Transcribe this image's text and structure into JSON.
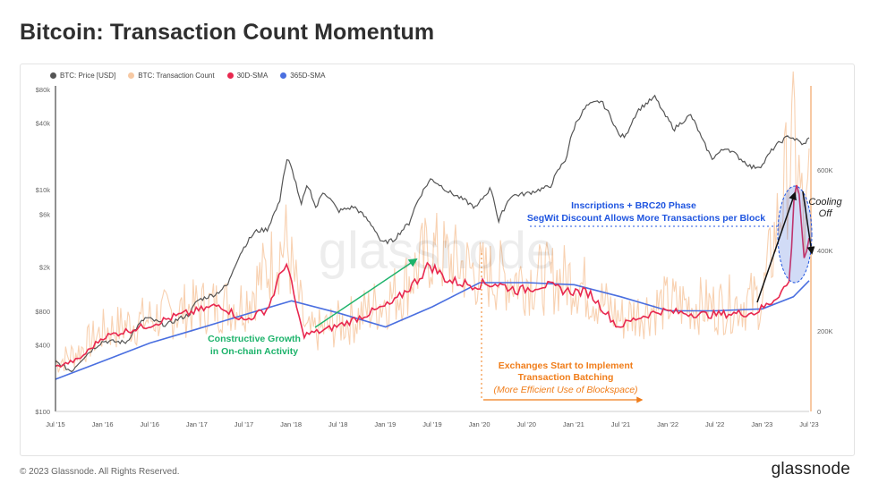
{
  "title": "Bitcoin: Transaction Count Momentum",
  "legend": [
    {
      "label": "BTC: Price [USD]",
      "color": "#555555"
    },
    {
      "label": "BTC: Transaction Count",
      "color": "#f7c9a3"
    },
    {
      "label": "30D-SMA",
      "color": "#e8284f"
    },
    {
      "label": "365D-SMA",
      "color": "#4a6fe0"
    }
  ],
  "watermark": "glassnode",
  "annotations": {
    "growth_line1": "Constructive Growth",
    "growth_line2": "in On-chain Activity",
    "batching_line1": "Exchanges Start to Implement",
    "batching_line2": "Transaction Batching",
    "batching_line3": "(More Efficient Use of Blockspace)",
    "inscriptions_line1": "Inscriptions + BRC20 Phase",
    "inscriptions_line2": "SegWit Discount Allows More Transactions per Block",
    "cooling_line1": "Cooling",
    "cooling_line2": "Off"
  },
  "colors": {
    "price": "#555555",
    "tx_count": "#f7c9a3",
    "sma30": "#e8284f",
    "sma365": "#4a6fe0",
    "green_annotation": "#1db36b",
    "orange_annotation": "#f07d1a",
    "blue_annotation": "#1f55e0"
  },
  "footer": {
    "copyright": "© 2023 Glassnode. All Rights Reserved.",
    "logo": "glassnode"
  },
  "chart_data": {
    "type": "line",
    "title": "Bitcoin: Transaction Count Momentum",
    "x_ticks": [
      "Jul '15",
      "Jan '16",
      "Jul '16",
      "Jan '17",
      "Jul '17",
      "Jan '18",
      "Jul '18",
      "Jan '19",
      "Jul '19",
      "Jan '20",
      "Jul '20",
      "Jan '21",
      "Jul '21",
      "Jan '22",
      "Jul '22",
      "Jan '23",
      "Jul '23"
    ],
    "x_range": [
      "2015-07-01",
      "2023-07-01"
    ],
    "y_left": {
      "scale": "log",
      "range": [
        100,
        80000
      ],
      "ticks": [
        "$100",
        "$400",
        "$800",
        "$2k",
        "$6k",
        "$10k",
        "$40k",
        "$80k"
      ],
      "tick_values": [
        100,
        400,
        800,
        2000,
        6000,
        10000,
        40000,
        80000
      ]
    },
    "y_right": {
      "scale": "linear",
      "range": [
        0,
        800000
      ],
      "ticks": [
        "0",
        "200K",
        "400K",
        "600K"
      ],
      "tick_values": [
        0,
        200000,
        400000,
        600000
      ]
    },
    "series": [
      {
        "name": "BTC: Price [USD]",
        "axis": "left",
        "points": [
          [
            "2015-07-01",
            280
          ],
          [
            "2015-09-01",
            230
          ],
          [
            "2015-11-01",
            330
          ],
          [
            "2016-01-01",
            430
          ],
          [
            "2016-04-01",
            420
          ],
          [
            "2016-06-15",
            700
          ],
          [
            "2016-09-01",
            600
          ],
          [
            "2016-12-01",
            750
          ],
          [
            "2017-01-01",
            1000
          ],
          [
            "2017-03-15",
            1150
          ],
          [
            "2017-05-01",
            1400
          ],
          [
            "2017-06-15",
            2600
          ],
          [
            "2017-08-15",
            4200
          ],
          [
            "2017-10-01",
            4400
          ],
          [
            "2017-11-15",
            7500
          ],
          [
            "2017-12-17",
            19000
          ],
          [
            "2018-02-06",
            7000
          ],
          [
            "2018-03-05",
            11000
          ],
          [
            "2018-04-06",
            6700
          ],
          [
            "2018-05-05",
            9700
          ],
          [
            "2018-07-01",
            6400
          ],
          [
            "2018-09-01",
            7000
          ],
          [
            "2018-11-20",
            4400
          ],
          [
            "2018-12-15",
            3300
          ],
          [
            "2019-02-01",
            3500
          ],
          [
            "2019-04-03",
            5000
          ],
          [
            "2019-06-26",
            12500
          ],
          [
            "2019-09-01",
            9600
          ],
          [
            "2019-12-18",
            6800
          ],
          [
            "2020-02-13",
            10300
          ],
          [
            "2020-03-13",
            5000
          ],
          [
            "2020-05-01",
            8800
          ],
          [
            "2020-07-01",
            9200
          ],
          [
            "2020-10-01",
            10700
          ],
          [
            "2020-12-01",
            19000
          ],
          [
            "2021-01-08",
            40000
          ],
          [
            "2021-02-20",
            57000
          ],
          [
            "2021-04-14",
            63000
          ],
          [
            "2021-06-22",
            31000
          ],
          [
            "2021-07-20",
            30000
          ],
          [
            "2021-09-06",
            52000
          ],
          [
            "2021-11-10",
            68000
          ],
          [
            "2021-12-15",
            48000
          ],
          [
            "2022-01-24",
            35000
          ],
          [
            "2022-03-28",
            47000
          ],
          [
            "2022-05-12",
            28000
          ],
          [
            "2022-06-18",
            19000
          ],
          [
            "2022-08-15",
            24000
          ],
          [
            "2022-10-01",
            19500
          ],
          [
            "2022-11-21",
            15800
          ],
          [
            "2023-01-01",
            16600
          ],
          [
            "2023-02-15",
            24000
          ],
          [
            "2023-04-14",
            30500
          ],
          [
            "2023-06-15",
            25000
          ],
          [
            "2023-07-01",
            30400
          ]
        ]
      },
      {
        "name": "30D-SMA",
        "axis": "right",
        "points": [
          [
            "2015-07-01",
            110000
          ],
          [
            "2015-10-01",
            130000
          ],
          [
            "2016-01-01",
            185000
          ],
          [
            "2016-04-01",
            200000
          ],
          [
            "2016-07-01",
            215000
          ],
          [
            "2016-10-01",
            235000
          ],
          [
            "2017-01-01",
            250000
          ],
          [
            "2017-04-01",
            265000
          ],
          [
            "2017-07-01",
            225000
          ],
          [
            "2017-10-01",
            255000
          ],
          [
            "2017-12-10",
            375000
          ],
          [
            "2018-02-15",
            190000
          ],
          [
            "2018-05-01",
            200000
          ],
          [
            "2018-08-01",
            220000
          ],
          [
            "2018-11-01",
            245000
          ],
          [
            "2019-02-01",
            270000
          ],
          [
            "2019-05-01",
            325000
          ],
          [
            "2019-06-20",
            365000
          ],
          [
            "2019-09-01",
            325000
          ],
          [
            "2019-12-01",
            315000
          ],
          [
            "2020-03-01",
            318000
          ],
          [
            "2020-06-01",
            300000
          ],
          [
            "2020-09-01",
            315000
          ],
          [
            "2020-12-01",
            300000
          ],
          [
            "2021-03-01",
            295000
          ],
          [
            "2021-06-20",
            210000
          ],
          [
            "2021-09-01",
            232000
          ],
          [
            "2021-12-01",
            250000
          ],
          [
            "2022-03-01",
            245000
          ],
          [
            "2022-06-01",
            240000
          ],
          [
            "2022-09-01",
            243000
          ],
          [
            "2022-12-01",
            245000
          ],
          [
            "2023-02-01",
            270000
          ],
          [
            "2023-04-15",
            320000
          ],
          [
            "2023-05-10",
            590000
          ],
          [
            "2023-05-25",
            540000
          ],
          [
            "2023-06-10",
            380000
          ],
          [
            "2023-07-01",
            420000
          ]
        ]
      },
      {
        "name": "365D-SMA",
        "axis": "right",
        "points": [
          [
            "2015-07-01",
            80000
          ],
          [
            "2016-01-01",
            125000
          ],
          [
            "2016-07-01",
            170000
          ],
          [
            "2017-01-01",
            205000
          ],
          [
            "2017-07-01",
            240000
          ],
          [
            "2018-01-01",
            275000
          ],
          [
            "2018-07-01",
            245000
          ],
          [
            "2019-01-01",
            210000
          ],
          [
            "2019-07-01",
            260000
          ],
          [
            "2020-01-01",
            320000
          ],
          [
            "2020-07-01",
            320000
          ],
          [
            "2021-01-01",
            315000
          ],
          [
            "2021-07-01",
            285000
          ],
          [
            "2022-01-01",
            250000
          ],
          [
            "2022-07-01",
            250000
          ],
          [
            "2023-01-01",
            255000
          ],
          [
            "2023-05-01",
            285000
          ],
          [
            "2023-07-01",
            325000
          ]
        ]
      },
      {
        "name": "BTC: Transaction Count",
        "axis": "right",
        "points": [
          [
            "2015-07-01",
            120000
          ],
          [
            "2015-10-01",
            150000
          ],
          [
            "2016-01-01",
            200000
          ],
          [
            "2016-07-01",
            230000
          ],
          [
            "2017-01-01",
            260000
          ],
          [
            "2017-07-01",
            270000
          ],
          [
            "2017-12-10",
            420000
          ],
          [
            "2018-03-01",
            190000
          ],
          [
            "2018-09-01",
            230000
          ],
          [
            "2019-03-01",
            300000
          ],
          [
            "2019-06-20",
            400000
          ],
          [
            "2020-01-01",
            340000
          ],
          [
            "2020-07-01",
            330000
          ],
          [
            "2021-01-01",
            330000
          ],
          [
            "2021-07-01",
            230000
          ],
          [
            "2022-01-01",
            270000
          ],
          [
            "2022-07-01",
            260000
          ],
          [
            "2023-01-01",
            280000
          ],
          [
            "2023-05-05",
            680000
          ],
          [
            "2023-06-15",
            430000
          ],
          [
            "2023-07-01",
            550000
          ]
        ]
      }
    ],
    "annotations": [
      "Constructive Growth in On-chain Activity",
      "Exchanges Start to Implement Transaction Batching (More Efficient Use of Blockspace)",
      "Inscriptions + BRC20 Phase",
      "SegWit Discount Allows More Transactions per Block",
      "Cooling Off"
    ],
    "legend_position": "top-left",
    "grid": false
  }
}
